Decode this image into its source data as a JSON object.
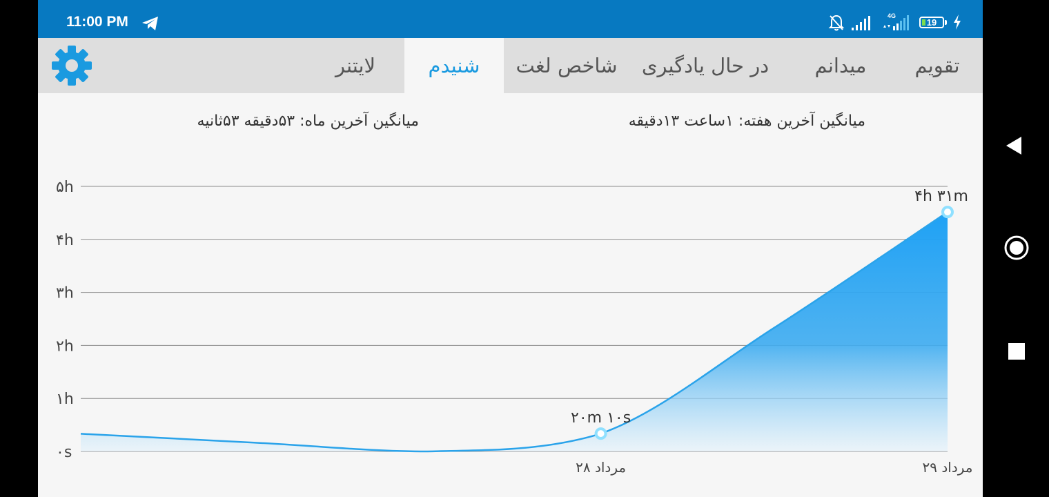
{
  "status_bar": {
    "time": "11:00 PM",
    "icons": [
      "telegram-icon",
      "bell-off-icon",
      "signal-icon",
      "signal-4g-icon"
    ],
    "network_label": "4G",
    "battery_level": "19",
    "charging": true
  },
  "tabs": [
    {
      "label": "تقویم",
      "active": false
    },
    {
      "label": "میدانم",
      "active": false
    },
    {
      "label": "در حال یادگیری",
      "active": false
    },
    {
      "label": "شاخص لغت",
      "active": false
    },
    {
      "label": "شنیدم",
      "active": true
    },
    {
      "label": "لایتنر",
      "active": false
    }
  ],
  "settings_icon": "gear-icon",
  "stats": {
    "week_average": "میانگین آخرین هفته: ۱ساعت  ۱۳دقیقه",
    "month_average": "میانگین آخرین ماه: ۵۳دقیقه  ۵۳ثانیه"
  },
  "colors": {
    "status_bar": "#0779c1",
    "accent": "#1a9ae0",
    "tab_bar": "#dedede",
    "area_fill": "#1ea1f5",
    "line": "#2aa3ea",
    "point": "#8fe0ff"
  },
  "chart_data": {
    "type": "area",
    "x": [
      "",
      "",
      "",
      "۲۸ مرداد",
      "",
      "۲۹ مرداد"
    ],
    "x_tick_labels": [
      "۲۸ مرداد",
      "۲۹ مرداد"
    ],
    "values_minutes": [
      20,
      10,
      0,
      20.2,
      140,
      271
    ],
    "y_ticks": [
      "۰s",
      "۱h",
      "۲h",
      "۳h",
      "۴h",
      "۵h"
    ],
    "ylim_minutes": [
      0,
      300
    ],
    "grid": true,
    "point_labels": [
      {
        "index": 3,
        "text": "۲۰m ۱۰s"
      },
      {
        "index": 5,
        "text": "۴h ۳۱m"
      }
    ]
  },
  "nav": {
    "back": "back-triangle-icon",
    "home": "home-circle-icon",
    "recents": "recents-square-icon"
  }
}
